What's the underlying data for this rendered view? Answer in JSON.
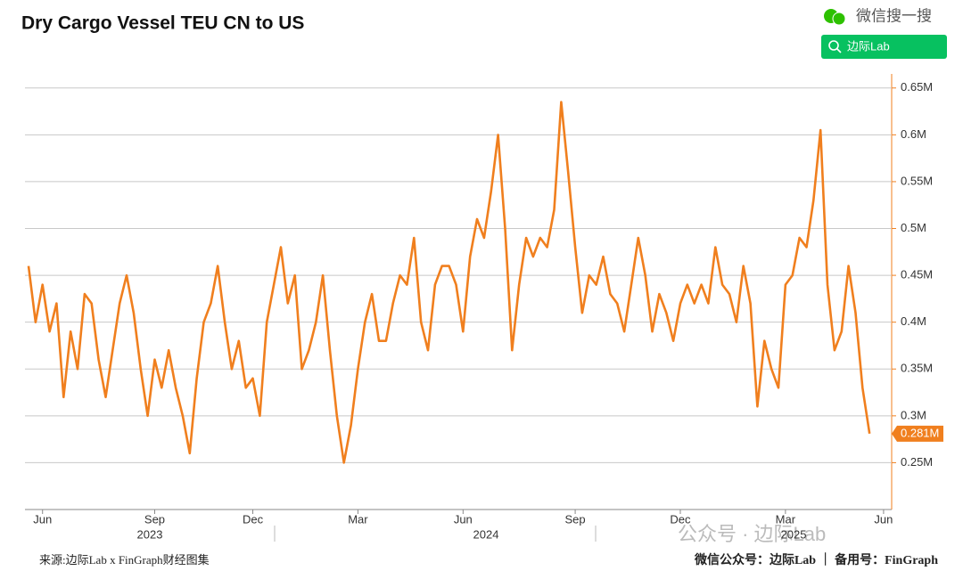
{
  "header": {
    "search_title": "微信搜一搜",
    "search_button": "边际Lab"
  },
  "footer": {
    "source": "来源:边际Lab x FinGraph财经图集",
    "contact": "微信公众号：边际Lab ｜ 备用号：FinGraph",
    "watermark": "公众号 · 边际Lab"
  },
  "chart_data": {
    "type": "line",
    "title": "Dry Cargo Vessel TEU CN to US",
    "color": "#f07f1e",
    "grid": true,
    "categories": [
      null,
      null,
      "Jun",
      null,
      null,
      null,
      null,
      null,
      null,
      null,
      null,
      null,
      null,
      null,
      null,
      null,
      null,
      null,
      "Sep",
      null,
      null,
      null,
      null,
      null,
      null,
      null,
      null,
      null,
      null,
      null,
      null,
      null,
      "Dec",
      null,
      null,
      null,
      null,
      null,
      null,
      null,
      null,
      null,
      null,
      null,
      null,
      null,
      null,
      "Mar",
      null,
      null,
      null,
      null,
      null,
      null,
      null,
      null,
      null,
      null,
      null,
      null,
      null,
      null,
      "Jun",
      null,
      null,
      null,
      null,
      null,
      null,
      null,
      null,
      null,
      null,
      null,
      null,
      null,
      null,
      null,
      "Sep",
      null,
      null,
      null,
      null,
      null,
      null,
      null,
      null,
      null,
      null,
      null,
      null,
      null,
      null,
      "Dec",
      null,
      null,
      null,
      null,
      null,
      null,
      null,
      null,
      null,
      null,
      null,
      null,
      null,
      null,
      "Mar",
      null,
      null,
      null,
      null,
      null,
      null,
      null,
      null,
      null,
      null,
      null,
      null,
      null,
      "Jun"
    ],
    "years": [
      "2023",
      "2024",
      "2025"
    ],
    "values": [
      0.46,
      0.4,
      0.44,
      0.39,
      0.42,
      0.32,
      0.39,
      0.35,
      0.43,
      0.42,
      0.36,
      0.32,
      0.37,
      0.42,
      0.45,
      0.41,
      0.35,
      0.3,
      0.36,
      0.33,
      0.37,
      0.33,
      0.3,
      0.26,
      0.34,
      0.4,
      0.42,
      0.46,
      0.4,
      0.35,
      0.38,
      0.33,
      0.34,
      0.3,
      0.4,
      0.44,
      0.48,
      0.42,
      0.45,
      0.35,
      0.37,
      0.4,
      0.45,
      0.37,
      0.3,
      0.25,
      0.29,
      0.35,
      0.4,
      0.43,
      0.38,
      0.38,
      0.42,
      0.45,
      0.44,
      0.49,
      0.4,
      0.37,
      0.44,
      0.46,
      0.46,
      0.44,
      0.39,
      0.47,
      0.51,
      0.49,
      0.54,
      0.6,
      0.5,
      0.37,
      0.44,
      0.49,
      0.47,
      0.49,
      0.48,
      0.52,
      0.635,
      0.56,
      0.48,
      0.41,
      0.45,
      0.44,
      0.47,
      0.43,
      0.42,
      0.39,
      0.44,
      0.49,
      0.45,
      0.39,
      0.43,
      0.41,
      0.38,
      0.42,
      0.44,
      0.42,
      0.44,
      0.42,
      0.48,
      0.44,
      0.43,
      0.4,
      0.46,
      0.42,
      0.31,
      0.38,
      0.35,
      0.33,
      0.44,
      0.45,
      0.49,
      0.48,
      0.53,
      0.605,
      0.44,
      0.37,
      0.39,
      0.46,
      0.41,
      0.33,
      0.281,
      null,
      null
    ],
    "last_value_label": "0.281M",
    "ylim": [
      0.2,
      0.665
    ],
    "yticks": [
      {
        "value": 0.25,
        "label": "0.25M"
      },
      {
        "value": 0.3,
        "label": "0.3M"
      },
      {
        "value": 0.35,
        "label": "0.35M"
      },
      {
        "value": 0.4,
        "label": "0.4M"
      },
      {
        "value": 0.45,
        "label": "0.45M"
      },
      {
        "value": 0.5,
        "label": "0.5M"
      },
      {
        "value": 0.55,
        "label": "0.55M"
      },
      {
        "value": 0.6,
        "label": "0.6M"
      },
      {
        "value": 0.65,
        "label": "0.65M"
      }
    ]
  }
}
